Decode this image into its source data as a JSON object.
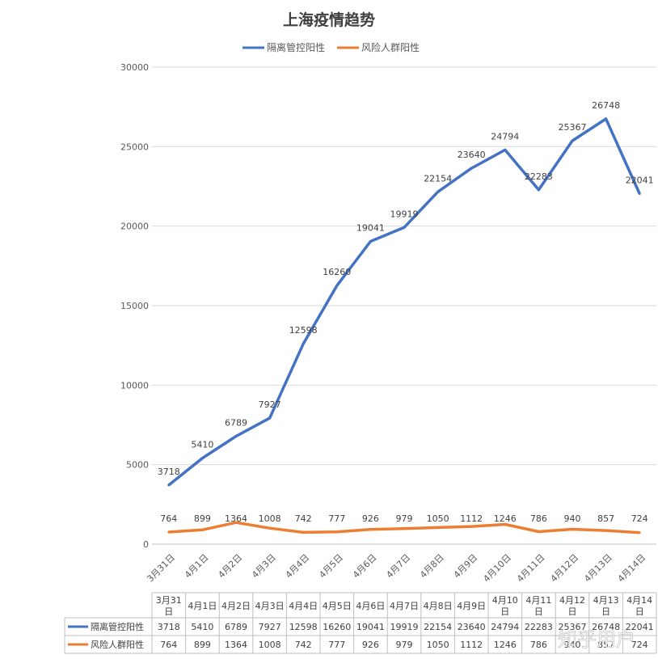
{
  "chart_data": {
    "type": "line",
    "title": "上海疫情趋势",
    "categories": [
      "3月31日",
      "4月1日",
      "4月2日",
      "4月3日",
      "4月4日",
      "4月5日",
      "4月6日",
      "4月7日",
      "4月8日",
      "4月9日",
      "4月10日",
      "4月11日",
      "4月12日",
      "4月13日",
      "4月14日"
    ],
    "table_headers": [
      [
        "3月31",
        "日"
      ],
      [
        "4月1日"
      ],
      [
        "4月2日"
      ],
      [
        "4月3日"
      ],
      [
        "4月4日"
      ],
      [
        "4月5日"
      ],
      [
        "4月6日"
      ],
      [
        "4月7日"
      ],
      [
        "4月8日"
      ],
      [
        "4月9日"
      ],
      [
        "4月10",
        "日"
      ],
      [
        "4月11",
        "日"
      ],
      [
        "4月12",
        "日"
      ],
      [
        "4月13",
        "日"
      ],
      [
        "4月14",
        "日"
      ]
    ],
    "series": [
      {
        "name": "隔离管控阳性",
        "color": "#4472C4",
        "values": [
          3718,
          5410,
          6789,
          7927,
          12598,
          16260,
          19041,
          19919,
          22154,
          23640,
          24794,
          22283,
          25367,
          26748,
          22041
        ]
      },
      {
        "name": "风险人群阳性",
        "color": "#ED7D31",
        "values": [
          764,
          899,
          1364,
          1008,
          742,
          777,
          926,
          979,
          1050,
          1112,
          1246,
          786,
          940,
          857,
          724
        ]
      }
    ],
    "ylim": [
      0,
      30000
    ],
    "yticks": [
      0,
      5000,
      10000,
      15000,
      20000,
      25000,
      30000
    ],
    "grid": true,
    "legend_position": "top",
    "data_table": true
  },
  "watermark": "知乎用户"
}
